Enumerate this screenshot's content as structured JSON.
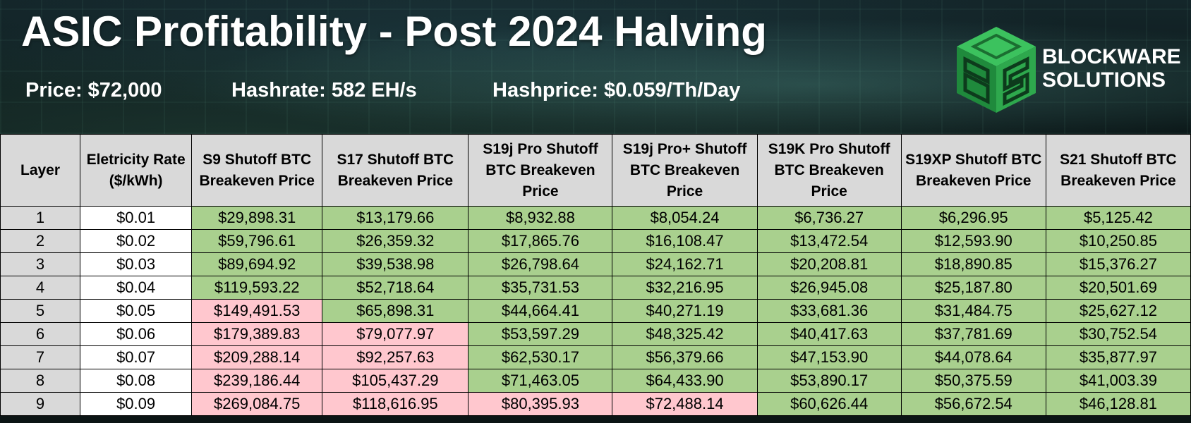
{
  "header": {
    "title": "ASIC Profitability - Post 2024 Halving",
    "price": "Price: $72,000",
    "hashrate": "Hashrate: 582 EH/s",
    "hashprice": "Hashprice: $0.059/Th/Day"
  },
  "logo": {
    "line1": "BLOCKWARE",
    "line2": "SOLUTIONS",
    "icon": "blockware-cube-logo",
    "color": "#2fa84f"
  },
  "colors": {
    "profitable": "#a9d08e",
    "unprofitable": "#ffc7ce",
    "header_bg": "#d9d9d9"
  },
  "table": {
    "headers": [
      "Layer",
      "Eletricity Rate ($/kWh)",
      "S9 Shutoff BTC Breakeven Price",
      "S17 Shutoff BTC Breakeven Price",
      "S19j Pro Shutoff BTC Breakeven Price",
      "S19j Pro+ Shutoff BTC Breakeven Price",
      "S19K Pro Shutoff BTC Breakeven Price",
      "S19XP Shutoff BTC Breakeven Price",
      "S21 Shutoff BTC Breakeven Price"
    ],
    "rows": [
      {
        "layer": "1",
        "rate": "$0.01",
        "values": [
          "$29,898.31",
          "$13,179.66",
          "$8,932.88",
          "$8,054.24",
          "$6,736.27",
          "$6,296.95",
          "$5,125.42"
        ],
        "profitable": [
          true,
          true,
          true,
          true,
          true,
          true,
          true
        ]
      },
      {
        "layer": "2",
        "rate": "$0.02",
        "values": [
          "$59,796.61",
          "$26,359.32",
          "$17,865.76",
          "$16,108.47",
          "$13,472.54",
          "$12,593.90",
          "$10,250.85"
        ],
        "profitable": [
          true,
          true,
          true,
          true,
          true,
          true,
          true
        ]
      },
      {
        "layer": "3",
        "rate": "$0.03",
        "values": [
          "$89,694.92",
          "$39,538.98",
          "$26,798.64",
          "$24,162.71",
          "$20,208.81",
          "$18,890.85",
          "$15,376.27"
        ],
        "profitable": [
          true,
          true,
          true,
          true,
          true,
          true,
          true
        ]
      },
      {
        "layer": "4",
        "rate": "$0.04",
        "values": [
          "$119,593.22",
          "$52,718.64",
          "$35,731.53",
          "$32,216.95",
          "$26,945.08",
          "$25,187.80",
          "$20,501.69"
        ],
        "profitable": [
          true,
          true,
          true,
          true,
          true,
          true,
          true
        ]
      },
      {
        "layer": "5",
        "rate": "$0.05",
        "values": [
          "$149,491.53",
          "$65,898.31",
          "$44,664.41",
          "$40,271.19",
          "$33,681.36",
          "$31,484.75",
          "$25,627.12"
        ],
        "profitable": [
          false,
          true,
          true,
          true,
          true,
          true,
          true
        ]
      },
      {
        "layer": "6",
        "rate": "$0.06",
        "values": [
          "$179,389.83",
          "$79,077.97",
          "$53,597.29",
          "$48,325.42",
          "$40,417.63",
          "$37,781.69",
          "$30,752.54"
        ],
        "profitable": [
          false,
          false,
          true,
          true,
          true,
          true,
          true
        ]
      },
      {
        "layer": "7",
        "rate": "$0.07",
        "values": [
          "$209,288.14",
          "$92,257.63",
          "$62,530.17",
          "$56,379.66",
          "$47,153.90",
          "$44,078.64",
          "$35,877.97"
        ],
        "profitable": [
          false,
          false,
          true,
          true,
          true,
          true,
          true
        ]
      },
      {
        "layer": "8",
        "rate": "$0.08",
        "values": [
          "$239,186.44",
          "$105,437.29",
          "$71,463.05",
          "$64,433.90",
          "$53,890.17",
          "$50,375.59",
          "$41,003.39"
        ],
        "profitable": [
          false,
          false,
          true,
          true,
          true,
          true,
          true
        ]
      },
      {
        "layer": "9",
        "rate": "$0.09",
        "values": [
          "$269,084.75",
          "$118,616.95",
          "$80,395.93",
          "$72,488.14",
          "$60,626.44",
          "$56,672.54",
          "$46,128.81"
        ],
        "profitable": [
          false,
          false,
          false,
          false,
          true,
          true,
          true
        ]
      }
    ]
  }
}
